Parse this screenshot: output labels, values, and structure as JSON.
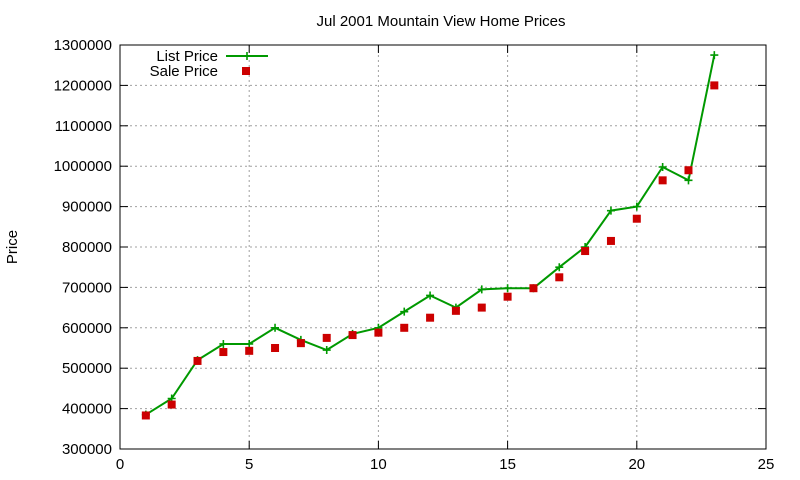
{
  "chart_data": {
    "type": "line",
    "title": "Jul 2001 Mountain View Home Prices",
    "xlabel": "",
    "ylabel": "Price",
    "xlim": [
      0,
      25
    ],
    "ylim": [
      300000,
      1300000
    ],
    "x_ticks": [
      0,
      5,
      10,
      15,
      20,
      25
    ],
    "y_ticks": [
      300000,
      400000,
      500000,
      600000,
      700000,
      800000,
      900000,
      1000000,
      1100000,
      1200000,
      1300000
    ],
    "x_tick_labels": [
      "0",
      "5",
      "10",
      "15",
      "20",
      "25"
    ],
    "y_tick_labels": [
      "300000",
      "400000",
      "500000",
      "600000",
      "700000",
      "800000",
      "900000",
      "1000000",
      "1100000",
      "1200000",
      "1300000"
    ],
    "grid": true,
    "legend_position": "top-left",
    "x": [
      1,
      2,
      3,
      4,
      5,
      6,
      7,
      8,
      9,
      10,
      11,
      12,
      13,
      14,
      15,
      16,
      17,
      18,
      19,
      20,
      21,
      22,
      23
    ],
    "series": [
      {
        "name": "List Price",
        "style": "line-with-plus-markers",
        "color": "#009900",
        "values": [
          385000,
          425000,
          520000,
          560000,
          560000,
          600000,
          570000,
          545000,
          585000,
          600000,
          640000,
          680000,
          650000,
          695000,
          698000,
          698000,
          750000,
          800000,
          890000,
          900000,
          998000,
          965000,
          1275000
        ]
      },
      {
        "name": "Sale Price",
        "style": "square-markers",
        "color": "#cc0000",
        "values": [
          383000,
          410000,
          518000,
          540000,
          543000,
          550000,
          562000,
          575000,
          582000,
          588000,
          600000,
          625000,
          642000,
          650000,
          677000,
          698000,
          725000,
          790000,
          815000,
          870000,
          965000,
          990000,
          1200000
        ]
      }
    ]
  }
}
